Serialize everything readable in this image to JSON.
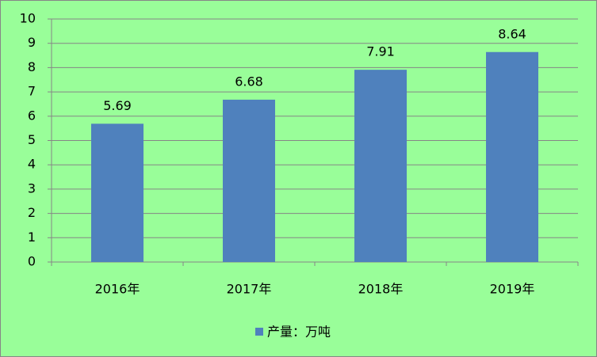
{
  "chart_data": {
    "type": "bar",
    "categories": [
      "2016年",
      "2017年",
      "2018年",
      "2019年"
    ],
    "series": [
      {
        "name": "产量：万吨",
        "color": "#4f81bd",
        "values": [
          5.69,
          6.68,
          7.91,
          8.64
        ]
      }
    ],
    "ylim": [
      0,
      10
    ],
    "yticks": [
      0,
      1,
      2,
      3,
      4,
      5,
      6,
      7,
      8,
      9,
      10
    ],
    "grid": true,
    "legend": "bottom"
  }
}
